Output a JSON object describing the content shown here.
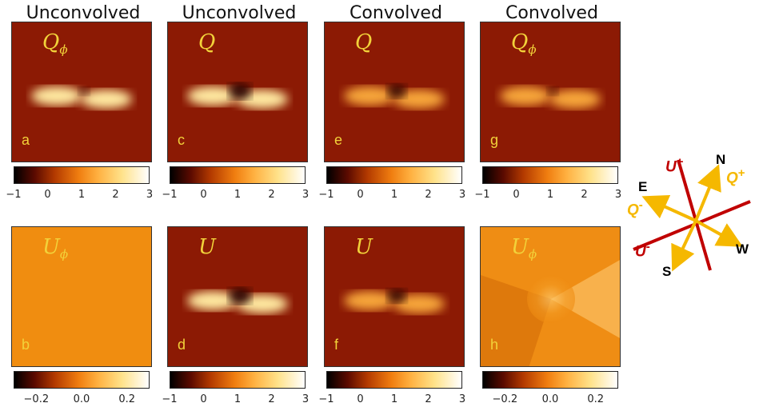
{
  "column_titles": [
    "Unconvolved",
    "Unconvolved",
    "Convolved",
    "Convolved"
  ],
  "panels": [
    {
      "letter": "a",
      "symbol": "Q",
      "sub": "ϕ"
    },
    {
      "letter": "c",
      "symbol": "Q",
      "sub": ""
    },
    {
      "letter": "e",
      "symbol": "Q",
      "sub": ""
    },
    {
      "letter": "g",
      "symbol": "Q",
      "sub": "ϕ"
    },
    {
      "letter": "b",
      "symbol": "U",
      "sub": "ϕ"
    },
    {
      "letter": "d",
      "symbol": "U",
      "sub": ""
    },
    {
      "letter": "f",
      "symbol": "U",
      "sub": ""
    },
    {
      "letter": "h",
      "symbol": "U",
      "sub": "ϕ"
    }
  ],
  "colorbar_ticks_wide": [
    "−1",
    "0",
    "1",
    "2",
    "3"
  ],
  "colorbar_ticks_narrow": [
    "−0.2",
    "0.0",
    "0.2"
  ],
  "colorbar_ranges": {
    "wide": [
      -1,
      3
    ],
    "narrow": [
      -0.3,
      0.3
    ]
  },
  "compass": {
    "N": "N",
    "S": "S",
    "E": "E",
    "W": "W",
    "u_plus": "U",
    "u_plus_sign": "+",
    "u_minus": "U",
    "u_minus_sign": "-",
    "q_plus": "Q",
    "q_plus_sign": "+",
    "q_minus": "Q",
    "q_minus_sign": "-",
    "colors": {
      "u": "#c00000",
      "q": "#f5b800",
      "text": "#000000"
    }
  },
  "colormap": "afmhot"
}
